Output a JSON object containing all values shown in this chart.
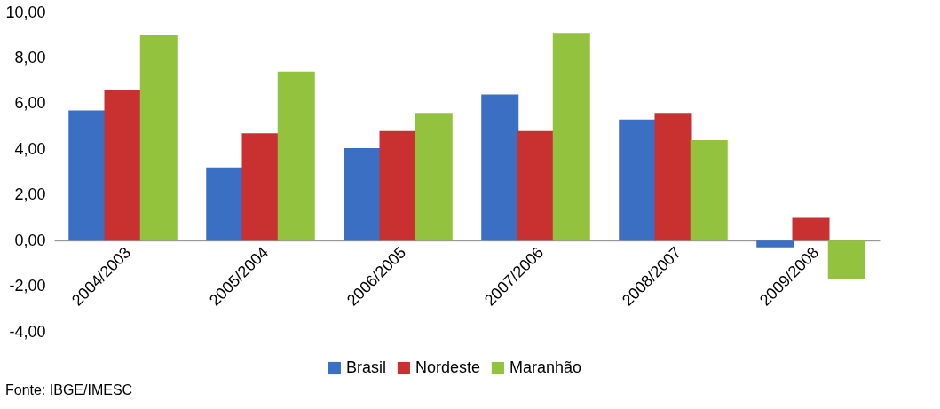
{
  "chart_data": {
    "type": "bar",
    "categories": [
      "2004/2003",
      "2005/2004",
      "2006/2005",
      "2007/2006",
      "2008/2007",
      "2009/2008"
    ],
    "series": [
      {
        "name": "Brasil",
        "color": "#3a6fc4",
        "values": [
          5.7,
          3.2,
          4.05,
          6.4,
          5.3,
          -0.3
        ]
      },
      {
        "name": "Nordeste",
        "color": "#c8312f",
        "values": [
          6.6,
          4.7,
          4.8,
          4.8,
          5.6,
          1.0
        ]
      },
      {
        "name": "Maranhão",
        "color": "#93c23e",
        "values": [
          9.0,
          7.4,
          5.6,
          9.1,
          4.4,
          -1.7
        ]
      }
    ],
    "ylim": [
      -4,
      10
    ],
    "yticks": [
      {
        "value": -4,
        "label": "-4,00"
      },
      {
        "value": -2,
        "label": "-2,00"
      },
      {
        "value": 0,
        "label": "0,00"
      },
      {
        "value": 2,
        "label": "2,00"
      },
      {
        "value": 4,
        "label": "4,00"
      },
      {
        "value": 6,
        "label": "6,00"
      },
      {
        "value": 8,
        "label": "8,00"
      },
      {
        "value": 10,
        "label": "10,00"
      }
    ],
    "grid": false,
    "legend": "bottom",
    "annotations": [
      "Fonte: IBGE/IMESC"
    ]
  }
}
